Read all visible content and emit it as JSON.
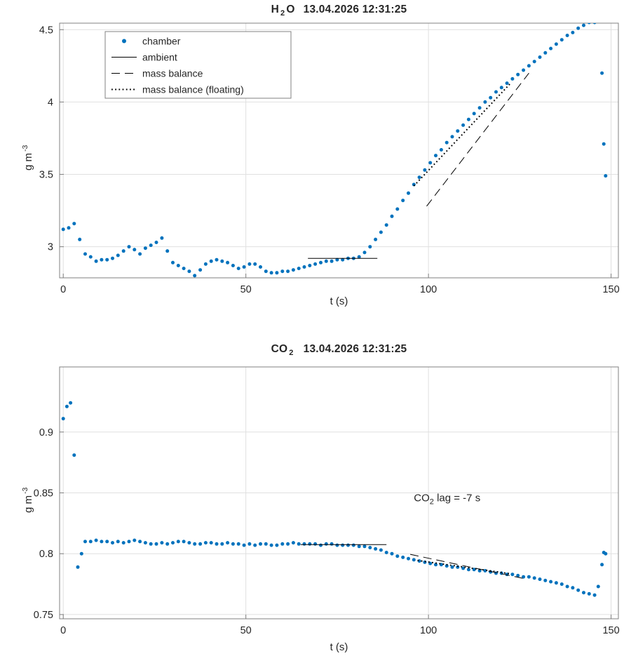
{
  "colors": {
    "marker": "#0072BD",
    "line": "#000000",
    "grid": "#e0e0e0",
    "axis": "#808080",
    "text": "#262626",
    "background": "#ffffff"
  },
  "chart_data": [
    {
      "type": "scatter",
      "title": {
        "compound": "H",
        "sub": "2",
        "compound2": "O",
        "datetime": "13.04.2026 12:31:25"
      },
      "xlabel": "t (s)",
      "ylabel": {
        "text": "g m",
        "sup": "-3"
      },
      "xlim": [
        -1,
        152
      ],
      "ylim": [
        2.785,
        4.545
      ],
      "xticks": [
        0,
        50,
        100,
        150
      ],
      "yticks": [
        3,
        3.5,
        4,
        4.5
      ],
      "grid": true,
      "legend_position": "top-left-inside",
      "legend": [
        {
          "label": "chamber",
          "style": "dot"
        },
        {
          "label": "ambient",
          "style": "solid"
        },
        {
          "label": "mass balance",
          "style": "dash"
        },
        {
          "label": "mass balance (floating)",
          "style": "dotted"
        }
      ],
      "series": [
        {
          "name": "chamber",
          "style": "dot",
          "x": [
            0,
            1.5,
            3,
            4.5,
            6,
            7.5,
            9,
            10.5,
            12,
            13.5,
            15,
            16.5,
            18,
            19.5,
            21,
            22.5,
            24,
            25.5,
            27,
            28.5,
            30,
            31.5,
            33,
            34.5,
            36,
            37.5,
            39,
            40.5,
            42,
            43.5,
            45,
            46.5,
            48,
            49.5,
            51,
            52.5,
            54,
            55.5,
            57,
            58.5,
            60,
            61.5,
            63,
            64.5,
            66,
            67.5,
            69,
            70.5,
            72,
            73.5,
            75,
            76.5,
            78,
            79.5,
            81,
            82.5,
            84,
            85.5,
            87,
            88.5,
            90,
            91.5,
            93,
            94.5,
            96,
            97.5,
            99,
            100.5,
            102,
            103.5,
            105,
            106.5,
            108,
            109.5,
            111,
            112.5,
            114,
            115.5,
            117,
            118.5,
            120,
            121.5,
            123,
            124.5,
            126,
            127.5,
            129,
            130.5,
            132,
            133.5,
            135,
            136.5,
            138,
            139.5,
            141,
            142.5,
            144,
            145.5,
            147.5,
            148,
            148.5
          ],
          "y": [
            3.12,
            3.13,
            3.16,
            3.05,
            2.95,
            2.93,
            2.9,
            2.91,
            2.91,
            2.92,
            2.94,
            2.97,
            3,
            2.98,
            2.95,
            2.99,
            3.01,
            3.03,
            3.06,
            2.97,
            2.89,
            2.87,
            2.85,
            2.83,
            2.8,
            2.84,
            2.88,
            2.9,
            2.91,
            2.9,
            2.89,
            2.87,
            2.85,
            2.86,
            2.88,
            2.88,
            2.86,
            2.83,
            2.82,
            2.82,
            2.83,
            2.83,
            2.84,
            2.85,
            2.86,
            2.87,
            2.88,
            2.89,
            2.9,
            2.9,
            2.91,
            2.91,
            2.92,
            2.92,
            2.93,
            2.96,
            3,
            3.05,
            3.1,
            3.15,
            3.21,
            3.26,
            3.32,
            3.37,
            3.43,
            3.48,
            3.53,
            3.58,
            3.63,
            3.67,
            3.72,
            3.76,
            3.8,
            3.84,
            3.88,
            3.92,
            3.96,
            4,
            4.03,
            4.07,
            4.1,
            4.13,
            4.16,
            4.19,
            4.22,
            4.25,
            4.28,
            4.31,
            4.34,
            4.37,
            4.4,
            4.43,
            4.46,
            4.48,
            4.51,
            4.53,
            4.55,
            4.55,
            4.2,
            3.71,
            3.49
          ]
        },
        {
          "name": "ambient",
          "style": "solid",
          "x": [
            67,
            86
          ],
          "y": [
            2.92,
            2.92
          ]
        },
        {
          "name": "mass balance",
          "style": "dash",
          "x": [
            99.5,
            127.5
          ],
          "y": [
            3.28,
            4.2
          ]
        },
        {
          "name": "mass balance (floating)",
          "style": "dotted",
          "x": [
            96,
            122.5
          ],
          "y": [
            3.42,
            4.13
          ]
        }
      ]
    },
    {
      "type": "scatter",
      "title": {
        "compound": "CO",
        "sub": "2",
        "compound2": "",
        "datetime": "13.04.2026 12:31:25"
      },
      "xlabel": "t (s)",
      "ylabel": {
        "text": "g m",
        "sup": "-3"
      },
      "xlim": [
        -1,
        152
      ],
      "ylim": [
        0.7465,
        0.9535
      ],
      "xticks": [
        0,
        50,
        100,
        150
      ],
      "yticks": [
        0.75,
        0.8,
        0.85,
        0.9
      ],
      "grid": true,
      "annotation": {
        "prefix": "CO",
        "sub": "2",
        "suffix": " lag = -7 s",
        "x": 96,
        "y": 0.843
      },
      "series": [
        {
          "name": "chamber",
          "style": "dot",
          "x": [
            0,
            1,
            2,
            3,
            4,
            5,
            6,
            7.5,
            9,
            10.5,
            12,
            13.5,
            15,
            16.5,
            18,
            19.5,
            21,
            22.5,
            24,
            25.5,
            27,
            28.5,
            30,
            31.5,
            33,
            34.5,
            36,
            37.5,
            39,
            40.5,
            42,
            43.5,
            45,
            46.5,
            48,
            49.5,
            51,
            52.5,
            54,
            55.5,
            57,
            58.5,
            60,
            61.5,
            63,
            64.5,
            66,
            67.5,
            69,
            70.5,
            72,
            73.5,
            75,
            76.5,
            78,
            79.5,
            81,
            82.5,
            84,
            85.5,
            87,
            88.5,
            90,
            91.5,
            93,
            94.5,
            96,
            97.5,
            99,
            100.5,
            102,
            103.5,
            105,
            106.5,
            108,
            109.5,
            111,
            112.5,
            114,
            115.5,
            117,
            118.5,
            120,
            121.5,
            123,
            124.5,
            126,
            127.5,
            129,
            130.5,
            132,
            133.5,
            135,
            136.5,
            138,
            139.5,
            141,
            142.5,
            144,
            145.5,
            146.5,
            147.5,
            148,
            148.5
          ],
          "y": [
            0.911,
            0.921,
            0.924,
            0.881,
            0.789,
            0.8,
            0.81,
            0.81,
            0.811,
            0.81,
            0.81,
            0.809,
            0.81,
            0.809,
            0.81,
            0.811,
            0.81,
            0.809,
            0.808,
            0.808,
            0.809,
            0.808,
            0.809,
            0.81,
            0.81,
            0.809,
            0.808,
            0.808,
            0.809,
            0.809,
            0.808,
            0.808,
            0.809,
            0.808,
            0.808,
            0.807,
            0.808,
            0.807,
            0.808,
            0.808,
            0.807,
            0.807,
            0.808,
            0.808,
            0.809,
            0.808,
            0.808,
            0.808,
            0.808,
            0.807,
            0.808,
            0.808,
            0.807,
            0.807,
            0.807,
            0.807,
            0.806,
            0.806,
            0.805,
            0.804,
            0.803,
            0.801,
            0.8,
            0.798,
            0.797,
            0.796,
            0.795,
            0.794,
            0.793,
            0.792,
            0.791,
            0.791,
            0.79,
            0.789,
            0.789,
            0.788,
            0.787,
            0.787,
            0.786,
            0.786,
            0.785,
            0.784,
            0.784,
            0.783,
            0.783,
            0.782,
            0.781,
            0.781,
            0.78,
            0.779,
            0.778,
            0.777,
            0.776,
            0.775,
            0.773,
            0.772,
            0.77,
            0.768,
            0.767,
            0.766,
            0.773,
            0.791,
            0.801,
            0.8
          ]
        },
        {
          "name": "ambient",
          "style": "solid",
          "x": [
            65,
            88.5
          ],
          "y": [
            0.8075,
            0.8075
          ]
        },
        {
          "name": "mass balance",
          "style": "dash",
          "x": [
            95,
            127
          ],
          "y": [
            0.7995,
            0.779
          ]
        },
        {
          "name": "mass balance (floating)",
          "style": "dotted",
          "x": [
            97,
            122.5
          ],
          "y": [
            0.7945,
            0.7835
          ]
        }
      ]
    }
  ]
}
